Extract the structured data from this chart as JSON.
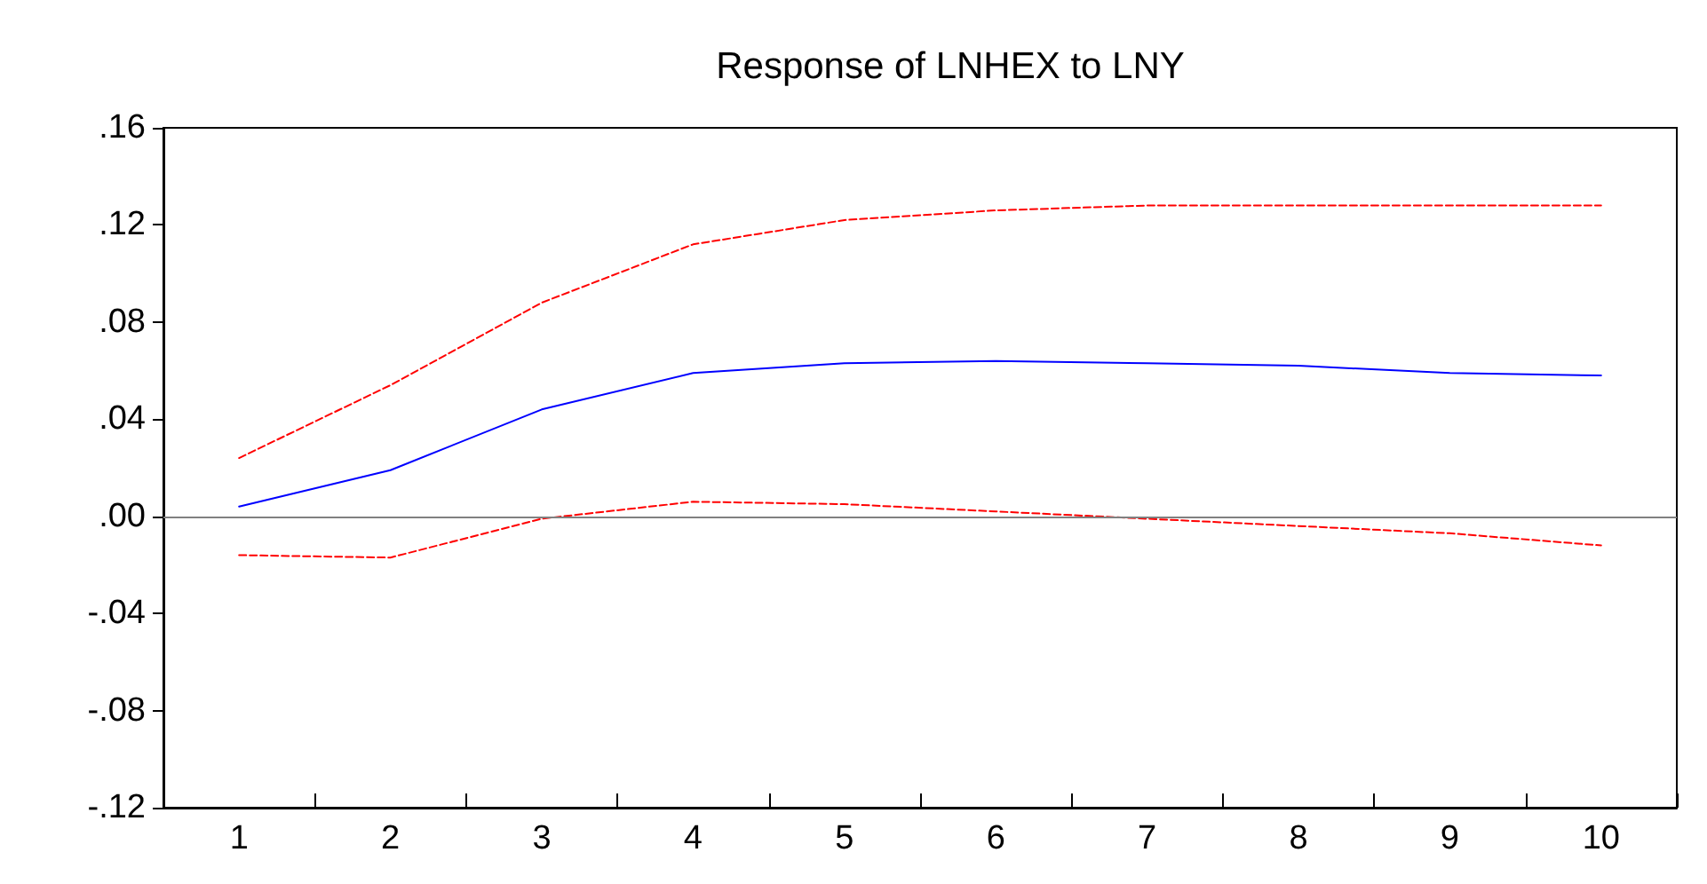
{
  "chart_data": {
    "type": "line",
    "title": "Response of LNHEX to LNY",
    "categories": [
      "1",
      "2",
      "3",
      "4",
      "5",
      "6",
      "7",
      "8",
      "9",
      "10"
    ],
    "series": [
      {
        "color": "#0000ff",
        "line_style": "solid",
        "values": [
          0.004,
          0.019,
          0.044,
          0.059,
          0.063,
          0.064,
          0.063,
          0.062,
          0.059,
          0.058
        ]
      },
      {
        "color": "#ff0000",
        "line_style": "dashed",
        "values": [
          0.024,
          0.054,
          0.088,
          0.112,
          0.122,
          0.126,
          0.128,
          0.128,
          0.128,
          0.128
        ]
      },
      {
        "color": "#ff0000",
        "line_style": "dashed",
        "values": [
          -0.016,
          -0.017,
          -0.001,
          0.006,
          0.005,
          0.002,
          -0.001,
          -0.004,
          -0.007,
          -0.012
        ]
      }
    ],
    "ylim": [
      -0.12,
      0.16
    ],
    "yticks": [
      {
        "value": -0.12,
        "label": "-.12"
      },
      {
        "value": -0.08,
        "label": "-.08"
      },
      {
        "value": -0.04,
        "label": "-.04"
      },
      {
        "value": 0,
        "label": ".00"
      },
      {
        "value": 0.04,
        "label": ".04"
      },
      {
        "value": 0.08,
        "label": ".08"
      },
      {
        "value": 0.12,
        "label": ".12"
      },
      {
        "value": 0.16,
        "label": ".16"
      }
    ],
    "ref_lines": [
      {
        "axis": "y",
        "value": 0,
        "color": "#808080",
        "line_style": "solid"
      }
    ],
    "grid": false,
    "marker": "none"
  }
}
